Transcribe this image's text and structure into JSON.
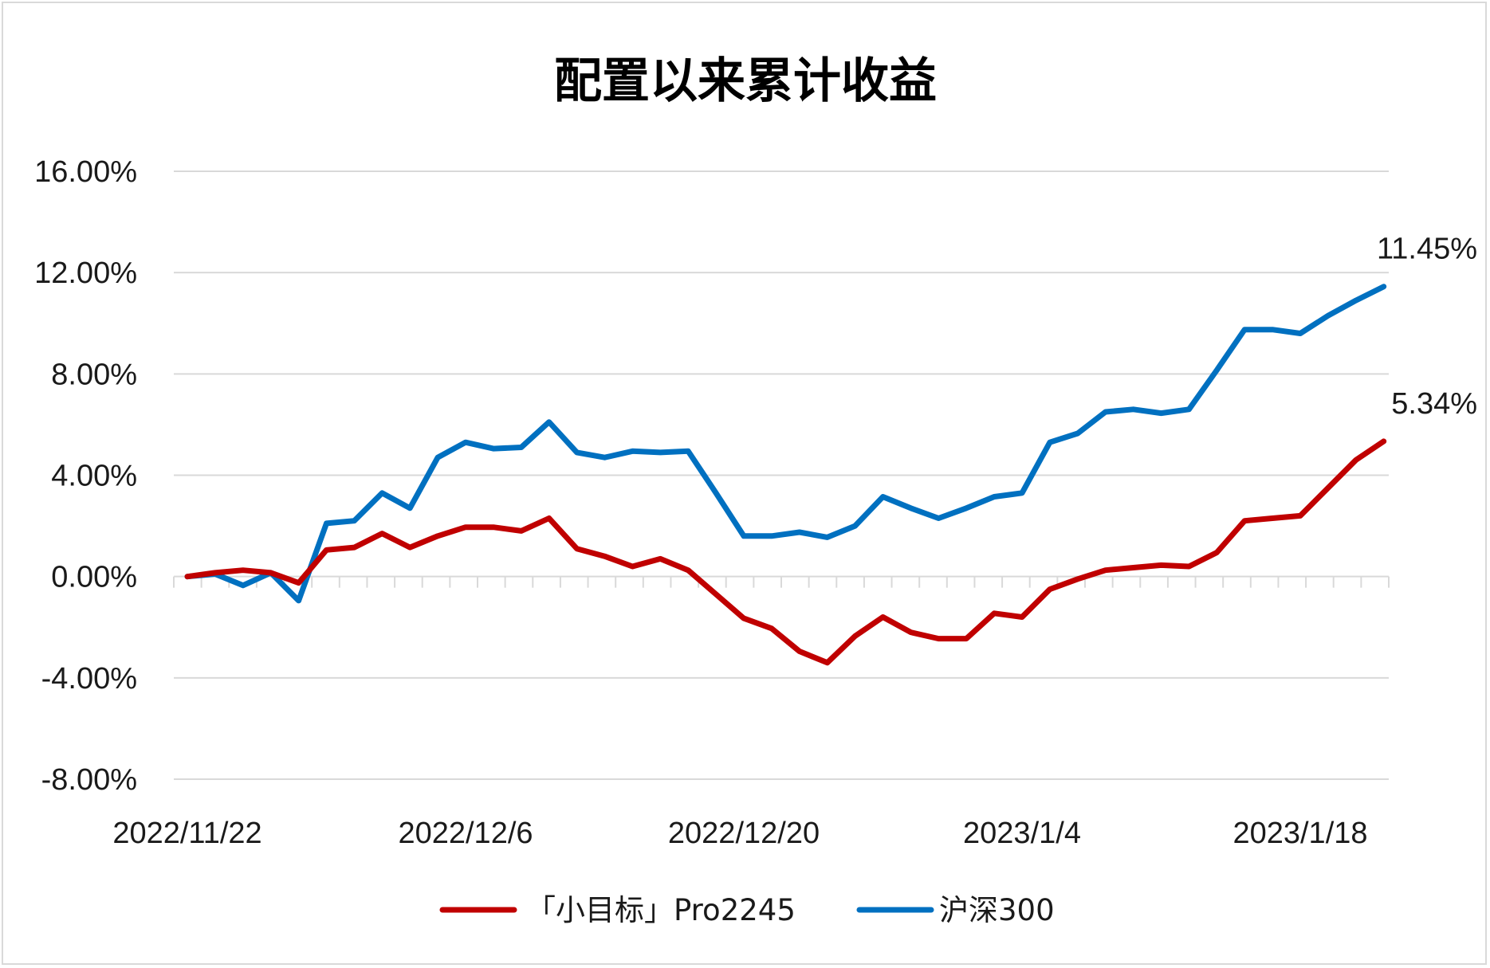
{
  "chart_data": {
    "type": "line",
    "title": "配置以来累计收益",
    "xlabel": "",
    "ylabel": "",
    "x_tick_labels": [
      "2022/11/22",
      "2022/12/6",
      "2022/12/20",
      "2023/1/4",
      "2023/1/18"
    ],
    "y_ticks": [
      -8,
      -4,
      0,
      4,
      8,
      12,
      16
    ],
    "y_tick_labels": [
      "-8.00%",
      "-4.00%",
      "0.00%",
      "4.00%",
      "8.00%",
      "12.00%",
      "16.00%"
    ],
    "ylim": [
      -8,
      16
    ],
    "grid": true,
    "legend_position": "bottom",
    "series": [
      {
        "name": "「小目标」Pro2245",
        "color": "#c00000",
        "end_label": "5.34%",
        "values": [
          0,
          0.15,
          0.25,
          0.15,
          -0.25,
          1.05,
          1.15,
          1.7,
          1.15,
          1.6,
          1.95,
          1.95,
          1.8,
          2.3,
          1.1,
          0.8,
          0.4,
          0.7,
          0.25,
          -0.7,
          -1.65,
          -2.05,
          -2.95,
          -3.4,
          -2.35,
          -1.6,
          -2.2,
          -2.45,
          -2.45,
          -1.45,
          -1.6,
          -0.5,
          -0.1,
          0.25,
          0.35,
          0.45,
          0.4,
          0.95,
          2.2,
          2.3,
          2.4,
          3.5,
          4.6,
          5.34
        ]
      },
      {
        "name": "沪深300",
        "color": "#0070c0",
        "end_label": "11.45%",
        "values": [
          0,
          0.1,
          -0.35,
          0.15,
          -0.95,
          2.1,
          2.2,
          3.3,
          2.7,
          4.7,
          5.3,
          5.05,
          5.1,
          6.1,
          4.9,
          4.7,
          4.95,
          4.9,
          4.95,
          3.3,
          1.6,
          1.6,
          1.75,
          1.55,
          2.0,
          3.15,
          2.7,
          2.3,
          2.7,
          3.15,
          3.3,
          5.3,
          5.65,
          6.5,
          6.6,
          6.45,
          6.6,
          8.15,
          9.75,
          9.75,
          9.6,
          10.3,
          10.9,
          11.45
        ]
      }
    ]
  }
}
